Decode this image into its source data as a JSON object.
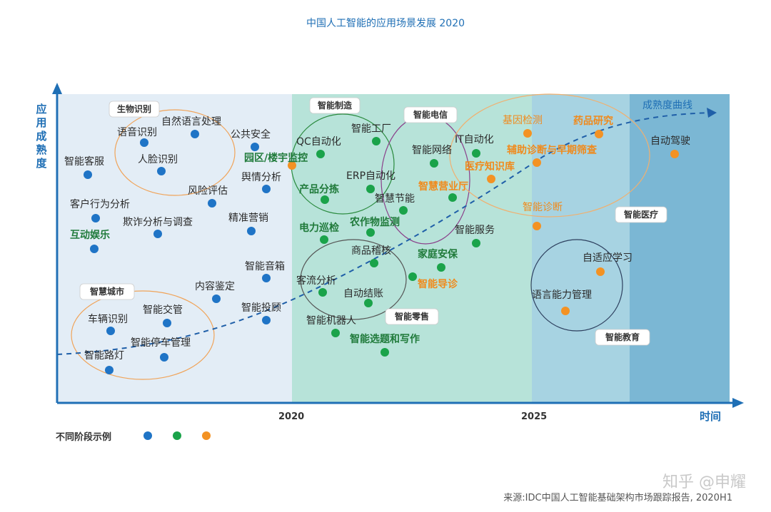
{
  "chart_data": {
    "type": "scatter",
    "title": "中国人工智能的应用场景发展 2020",
    "ylabel": "应用成熟度",
    "xlabel": "时间",
    "x_ticks": [
      "2020",
      "2025"
    ],
    "curve_label": "成熟度曲线",
    "legend": {
      "label": "不同阶段示例",
      "colors": [
        "#1f74c6",
        "#1aa34a",
        "#f39223"
      ]
    },
    "zones": [
      {
        "color": "#e3edf6"
      },
      {
        "color": "#b7e3d9"
      },
      {
        "color": "#a7d3e2"
      },
      {
        "color": "#7bb7d4"
      }
    ],
    "groups": [
      {
        "name": "生物识别"
      },
      {
        "name": "智能制造"
      },
      {
        "name": "智能电信"
      },
      {
        "name": "智能医疗"
      },
      {
        "name": "智慧城市"
      },
      {
        "name": "智能零售"
      },
      {
        "name": "智能教育"
      }
    ],
    "points": [
      {
        "label": "语音识别",
        "stage": 1,
        "style": "normal"
      },
      {
        "label": "自然语言处理",
        "stage": 1,
        "style": "normal"
      },
      {
        "label": "人脸识别",
        "stage": 1,
        "style": "normal"
      },
      {
        "label": "公共安全",
        "stage": 1,
        "style": "normal"
      },
      {
        "label": "智能客服",
        "stage": 1,
        "style": "normal"
      },
      {
        "label": "风险评估",
        "stage": 1,
        "style": "normal"
      },
      {
        "label": "舆情分析",
        "stage": 1,
        "style": "normal"
      },
      {
        "label": "客户行为分析",
        "stage": 1,
        "style": "normal"
      },
      {
        "label": "欺诈分析与调查",
        "stage": 1,
        "style": "normal"
      },
      {
        "label": "精准营销",
        "stage": 1,
        "style": "normal"
      },
      {
        "label": "互动娱乐",
        "stage": 1,
        "style": "bold-green"
      },
      {
        "label": "智能音箱",
        "stage": 1,
        "style": "normal"
      },
      {
        "label": "内容鉴定",
        "stage": 1,
        "style": "normal"
      },
      {
        "label": "智能投顾",
        "stage": 1,
        "style": "normal"
      },
      {
        "label": "车辆识别",
        "stage": 1,
        "style": "normal"
      },
      {
        "label": "智能交管",
        "stage": 1,
        "style": "normal"
      },
      {
        "label": "智能停车管理",
        "stage": 1,
        "style": "normal"
      },
      {
        "label": "智能路灯",
        "stage": 1,
        "style": "normal"
      },
      {
        "label": "园区/楼宇监控",
        "stage": 3,
        "style": "bold-green"
      },
      {
        "label": "QC自动化",
        "stage": 2,
        "style": "normal"
      },
      {
        "label": "智能工厂",
        "stage": 2,
        "style": "normal"
      },
      {
        "label": "ERP自动化",
        "stage": 2,
        "style": "normal"
      },
      {
        "label": "产品分拣",
        "stage": 2,
        "style": "bold-green"
      },
      {
        "label": "智慧节能",
        "stage": 2,
        "style": "normal"
      },
      {
        "label": "智能网络",
        "stage": 2,
        "style": "normal"
      },
      {
        "label": "智慧营业厅",
        "stage": 2,
        "style": "bold-orange"
      },
      {
        "label": "IT自动化",
        "stage": 2,
        "style": "normal"
      },
      {
        "label": "电力巡检",
        "stage": 2,
        "style": "bold-green"
      },
      {
        "label": "农作物监测",
        "stage": 2,
        "style": "bold-green"
      },
      {
        "label": "商品稽核",
        "stage": 2,
        "style": "normal"
      },
      {
        "label": "家庭安保",
        "stage": 2,
        "style": "bold-green"
      },
      {
        "label": "智能服务",
        "stage": 2,
        "style": "normal"
      },
      {
        "label": "客流分析",
        "stage": 2,
        "style": "normal"
      },
      {
        "label": "智能导诊",
        "stage": 2,
        "style": "bold-orange"
      },
      {
        "label": "自动结账",
        "stage": 2,
        "style": "normal"
      },
      {
        "label": "智能机器人",
        "stage": 2,
        "style": "normal"
      },
      {
        "label": "智能选题和写作",
        "stage": 2,
        "style": "bold-green"
      },
      {
        "label": "基因检测",
        "stage": 3,
        "style": "orange"
      },
      {
        "label": "药品研究",
        "stage": 3,
        "style": "bold-orange"
      },
      {
        "label": "辅助诊断与早期筛查",
        "stage": 3,
        "style": "bold-orange"
      },
      {
        "label": "医疗知识库",
        "stage": 3,
        "style": "bold-orange"
      },
      {
        "label": "智能诊断",
        "stage": 3,
        "style": "orange"
      },
      {
        "label": "自动驾驶",
        "stage": 3,
        "style": "normal"
      },
      {
        "label": "自适应学习",
        "stage": 3,
        "style": "normal"
      },
      {
        "label": "语言能力管理",
        "stage": 3,
        "style": "normal"
      }
    ]
  },
  "footer": {
    "source": "来源:IDC中国人工智能基础架构市场跟踪报告, 2020H1",
    "watermark": "知乎 @申耀"
  }
}
